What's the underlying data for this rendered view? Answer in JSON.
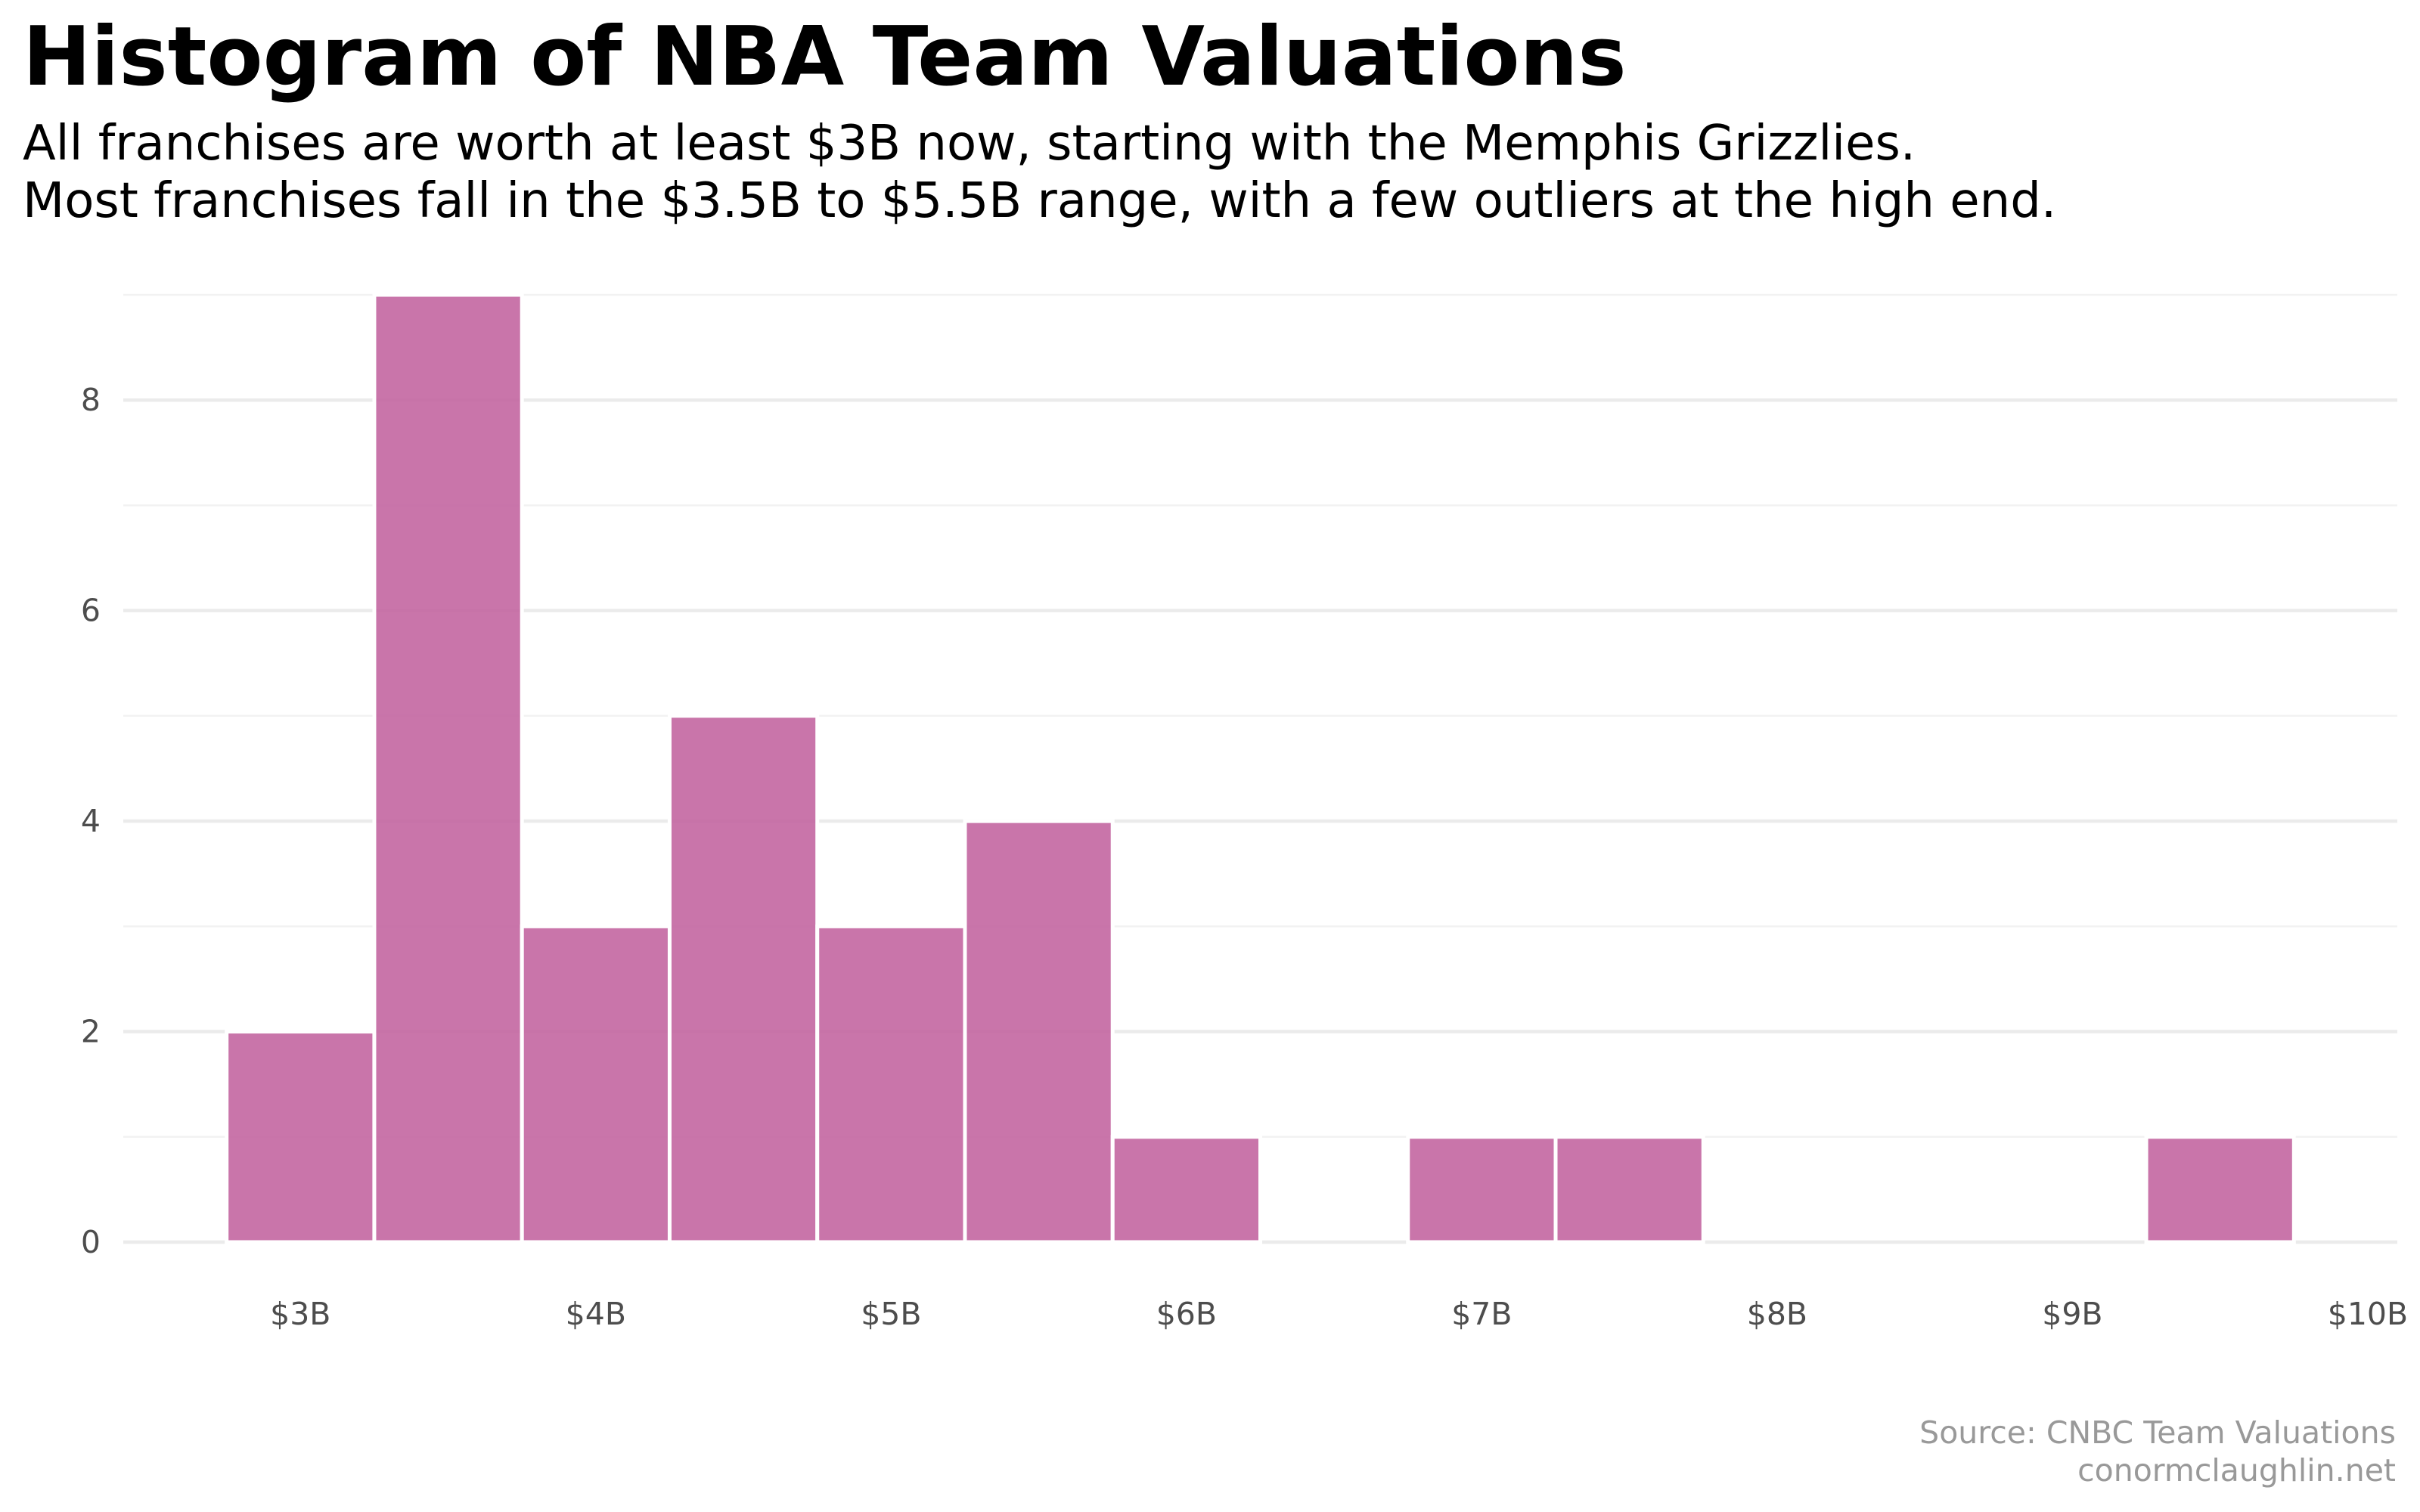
{
  "chart_data": {
    "type": "bar",
    "title": "Histogram of NBA Team Valuations",
    "subtitle": [
      "All franchises are worth at least $3B now, starting with the Memphis Grizzlies.",
      "Most franchises fall in the $3.5B to $5.5B range, with a few outliers at the high end."
    ],
    "caption": [
      "Source: CNBC Team Valuations",
      "conormclaughlin.net"
    ],
    "xlabel": "",
    "ylabel": "",
    "bin_width": 0.5,
    "bins": [
      {
        "start": 2.75,
        "end": 3.25,
        "count": 2
      },
      {
        "start": 3.25,
        "end": 3.75,
        "count": 9
      },
      {
        "start": 3.75,
        "end": 4.25,
        "count": 3
      },
      {
        "start": 4.25,
        "end": 4.75,
        "count": 5
      },
      {
        "start": 4.75,
        "end": 5.25,
        "count": 3
      },
      {
        "start": 5.25,
        "end": 5.75,
        "count": 4
      },
      {
        "start": 5.75,
        "end": 6.25,
        "count": 1
      },
      {
        "start": 6.25,
        "end": 6.75,
        "count": 0
      },
      {
        "start": 6.75,
        "end": 7.25,
        "count": 1
      },
      {
        "start": 7.25,
        "end": 7.75,
        "count": 1
      },
      {
        "start": 7.75,
        "end": 8.25,
        "count": 0
      },
      {
        "start": 8.25,
        "end": 8.75,
        "count": 0
      },
      {
        "start": 8.75,
        "end": 9.25,
        "count": 0
      },
      {
        "start": 9.25,
        "end": 9.75,
        "count": 1
      }
    ],
    "x_ticks": [
      {
        "value": 3,
        "label": "$3B"
      },
      {
        "value": 4,
        "label": "$4B"
      },
      {
        "value": 5,
        "label": "$5B"
      },
      {
        "value": 6,
        "label": "$6B"
      },
      {
        "value": 7,
        "label": "$7B"
      },
      {
        "value": 8,
        "label": "$8B"
      },
      {
        "value": 9,
        "label": "$9B"
      },
      {
        "value": 10,
        "label": "$10B"
      }
    ],
    "y_ticks": [
      {
        "value": 0,
        "label": "0"
      },
      {
        "value": 2,
        "label": "2"
      },
      {
        "value": 4,
        "label": "4"
      },
      {
        "value": 6,
        "label": "6"
      },
      {
        "value": 8,
        "label": "8"
      }
    ],
    "y_minor_ticks": [
      1,
      3,
      5,
      7,
      9
    ],
    "xlim": [
      2.4,
      10.1
    ],
    "ylim": [
      0,
      9
    ],
    "grid": true,
    "legend": "none",
    "colors": {
      "bar_fill": "#c2629e",
      "bar_stroke": "#ffffff",
      "grid_major": "#ebebeb",
      "grid_minor": "#f2f2f2",
      "tick_text": "#4d4d4d",
      "caption_text": "#999999"
    }
  }
}
